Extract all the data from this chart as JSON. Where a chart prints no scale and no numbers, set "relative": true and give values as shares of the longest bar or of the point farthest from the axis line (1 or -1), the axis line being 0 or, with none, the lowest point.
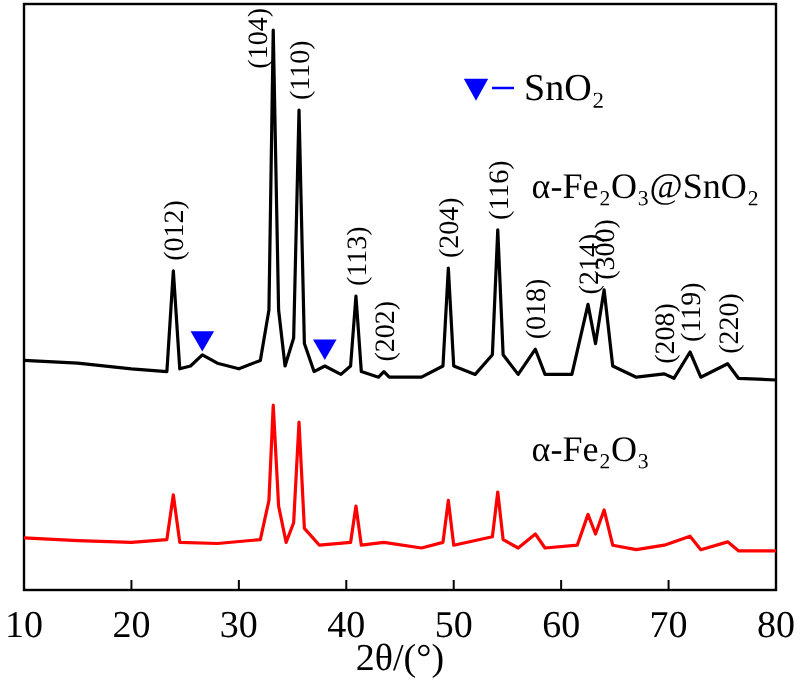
{
  "chart_data": {
    "type": "line",
    "relative": true,
    "xlabel": "2θ/(°)",
    "xlim": [
      10,
      80
    ],
    "xticks": [
      10,
      20,
      30,
      40,
      50,
      60,
      70,
      80
    ],
    "legend": "top right",
    "grid": false,
    "series": [
      {
        "name": "α-Fe₂O₃@SnO₂",
        "color": "#000000",
        "x": [
          10,
          15,
          20,
          23.3,
          23.9,
          24.5,
          25.5,
          26.6,
          28,
          30,
          32,
          32.8,
          33.2,
          33.7,
          34.3,
          35.1,
          35.6,
          36.1,
          37,
          38,
          39.5,
          40.4,
          40.9,
          41.4,
          43,
          43.5,
          44,
          47,
          49,
          49.5,
          50,
          52,
          53.6,
          54.1,
          54.6,
          56,
          57.6,
          58.5,
          61,
          62.5,
          63.2,
          64,
          64.8,
          67,
          69.6,
          70.5,
          72,
          73,
          75.5,
          76.5,
          80
        ],
        "values": [
          0.41,
          0.405,
          0.395,
          0.39,
          0.57,
          0.395,
          0.4,
          0.42,
          0.405,
          0.395,
          0.41,
          0.5,
          1,
          0.5,
          0.4,
          0.45,
          0.857,
          0.44,
          0.39,
          0.4,
          0.385,
          0.4,
          0.525,
          0.39,
          0.38,
          0.39,
          0.38,
          0.38,
          0.4,
          0.575,
          0.4,
          0.385,
          0.42,
          0.643,
          0.42,
          0.385,
          0.43,
          0.385,
          0.385,
          0.51,
          0.44,
          0.536,
          0.4,
          0.38,
          0.386,
          0.378,
          0.425,
          0.38,
          0.404,
          0.378,
          0.375
        ]
      },
      {
        "name": "α-Fe₂O₃",
        "color": "#ff0000",
        "x": [
          10,
          15,
          20,
          23.3,
          23.9,
          24.5,
          28,
          32,
          32.8,
          33.2,
          33.7,
          34.4,
          35.1,
          35.6,
          36.1,
          37.5,
          40.4,
          40.9,
          41.4,
          43.5,
          47,
          49,
          49.5,
          50,
          53.6,
          54.1,
          54.6,
          56,
          57.6,
          58.5,
          61.5,
          62.5,
          63.2,
          64,
          64.8,
          67,
          69.6,
          72,
          73,
          75.5,
          76.5,
          80
        ],
        "values": [
          0.093,
          0.088,
          0.085,
          0.09,
          0.17,
          0.085,
          0.083,
          0.09,
          0.16,
          0.33,
          0.15,
          0.085,
          0.12,
          0.3,
          0.11,
          0.08,
          0.085,
          0.15,
          0.08,
          0.085,
          0.075,
          0.085,
          0.16,
          0.08,
          0.095,
          0.175,
          0.09,
          0.075,
          0.1,
          0.075,
          0.08,
          0.135,
          0.1,
          0.143,
          0.08,
          0.072,
          0.08,
          0.096,
          0.072,
          0.086,
          0.07,
          0.07
        ]
      },
      {
        "name": "SnO₂",
        "type": "scatter",
        "marker": "triangle",
        "color": "#0000ff",
        "x": [
          26.6,
          38
        ],
        "values": [
          0.45,
          0.435
        ]
      }
    ],
    "annotations": [
      {
        "text": "(012)",
        "x": 23.9,
        "y": 0.57
      },
      {
        "text": "(104)",
        "x": 33.2,
        "y": 1
      },
      {
        "text": "(110)",
        "x": 35.6,
        "y": 0.857
      },
      {
        "text": "(113)",
        "x": 40.9,
        "y": 0.525
      },
      {
        "text": "(202)",
        "x": 43.5,
        "y": 0.39
      },
      {
        "text": "(204)",
        "x": 49.5,
        "y": 0.575
      },
      {
        "text": "(116)",
        "x": 54.1,
        "y": 0.643
      },
      {
        "text": "(018)",
        "x": 57.6,
        "y": 0.43
      },
      {
        "text": "(214)",
        "x": 62.5,
        "y": 0.51
      },
      {
        "text": "(300)",
        "x": 64,
        "y": 0.536
      },
      {
        "text": "(208)",
        "x": 69.6,
        "y": 0.386
      },
      {
        "text": "(119)",
        "x": 72,
        "y": 0.425
      },
      {
        "text": "(220)",
        "x": 75.5,
        "y": 0.404
      }
    ]
  }
}
